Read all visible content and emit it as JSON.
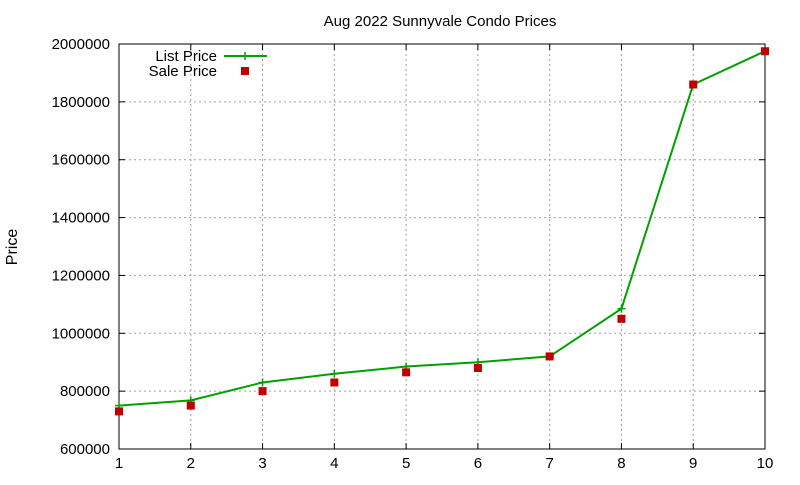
{
  "chart_data": {
    "type": "line",
    "title": "Aug 2022 Sunnyvale Condo Prices",
    "xlabel": "",
    "ylabel": "Price",
    "xlim": [
      1,
      10
    ],
    "ylim": [
      600000,
      2000000
    ],
    "x_ticks": [
      "1",
      "2",
      "3",
      "4",
      "5",
      "6",
      "7",
      "8",
      "9",
      "10"
    ],
    "y_ticks": [
      "600000",
      "800000",
      "1000000",
      "1200000",
      "1400000",
      "1600000",
      "1800000",
      "2000000"
    ],
    "grid": true,
    "legend_position": "top-left",
    "x": [
      1,
      2,
      3,
      4,
      5,
      6,
      7,
      8,
      9,
      10
    ],
    "series": [
      {
        "name": "List Price",
        "style": "line-with-plus-markers",
        "color": "#00a000",
        "values": [
          750000,
          768000,
          830000,
          860000,
          885000,
          900000,
          920000,
          1085000,
          1860000,
          1975000
        ]
      },
      {
        "name": "Sale Price",
        "style": "square-markers",
        "color": "#c00000",
        "values": [
          730000,
          750000,
          800000,
          830000,
          865000,
          880000,
          920000,
          1050000,
          1860000,
          1975000
        ]
      }
    ]
  }
}
